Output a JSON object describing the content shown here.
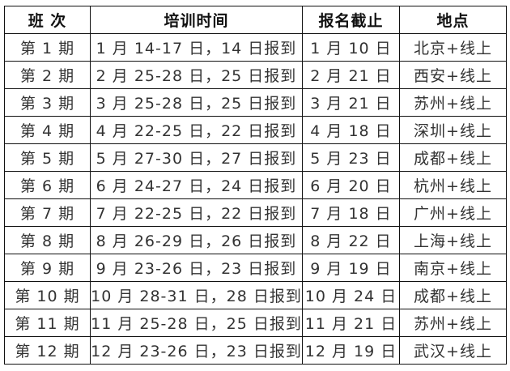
{
  "headers": [
    "班 次",
    "培训时间",
    "报名截止",
    "地点"
  ],
  "rows": [
    [
      "第 1 期",
      "1 月 14-17 日，14 日报到",
      "1 月 10 日",
      "北京+线上"
    ],
    [
      "第 2 期",
      "2 月 25-28 日，25 日报到",
      "2 月 21 日",
      "西安+线上"
    ],
    [
      "第 3 期",
      "3 月 25-28 日，25 日报到",
      "3 月 21 日",
      "苏州+线上"
    ],
    [
      "第 4 期",
      "4 月 22-25 日，22 日报到",
      "4 月 18 日",
      "深圳+线上"
    ],
    [
      "第 5 期",
      "5 月 27-30 日，27 日报到",
      "5 月 23 日",
      "成都+线上"
    ],
    [
      "第 6 期",
      "6 月 24-27 日，24 日报到",
      "6 月 20 日",
      "杭州+线上"
    ],
    [
      "第 7 期",
      "7 月 22-25 日，22 日报到",
      "7 月 18 日",
      "广州+线上"
    ],
    [
      "第 8 期",
      "8 月 26-29 日，26 日报到",
      "8 月 22 日",
      "上海+线上"
    ],
    [
      "第 9 期",
      "9 月 23-26 日，23 日报到",
      "9 月 19 日",
      "南京+线上"
    ],
    [
      "第 10 期",
      "10 月 28-31 日，28 日报到",
      "10 月 24 日",
      "成都+线上"
    ],
    [
      "第 11 期",
      "11 月 25-28 日，25 日报到",
      "11 月 21 日",
      "苏州+线上"
    ],
    [
      "第 12 期",
      "12 月 23-26 日，23 日报到",
      "12 月 19 日",
      "武汉+线上"
    ]
  ]
}
